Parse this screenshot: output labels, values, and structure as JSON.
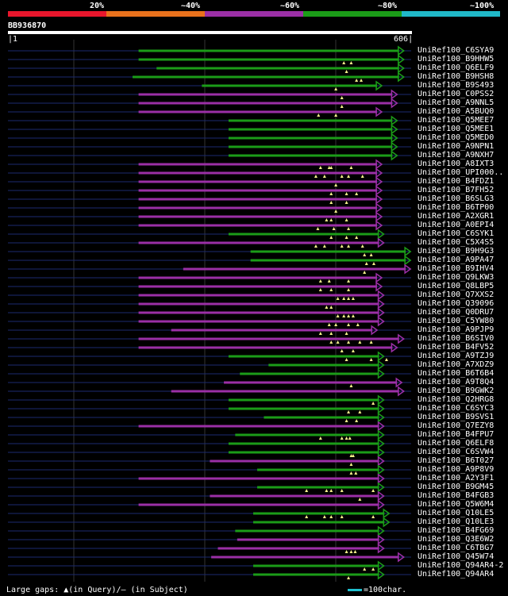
{
  "legend": {
    "labels": [
      "20%",
      "~40%",
      "~60%",
      "~80%",
      "~100%"
    ],
    "colors": [
      "#e8162c",
      "#e9711c",
      "#9b2fa6",
      "#1b9c18",
      "#20b8c8"
    ]
  },
  "query": {
    "id": "BB936870",
    "start": "1",
    "end": "606"
  },
  "footer": {
    "gaps_text": "Large gaps: ▲(in Query)/– (in Subject)",
    "scale_text": "=100char."
  },
  "hits": [
    {
      "label": "UniRef100_C6SYA9",
      "color": "green",
      "start": 197,
      "end": 595,
      "ticks": []
    },
    {
      "label": "UniRef100_B9HHW5",
      "color": "green",
      "start": 197,
      "end": 595,
      "ticks": [
        505,
        516
      ]
    },
    {
      "label": "UniRef100_Q6ELF9",
      "color": "green",
      "start": 224,
      "end": 595,
      "ticks": [
        509
      ]
    },
    {
      "label": "UniRef100_B9HSH8",
      "color": "green",
      "start": 188,
      "end": 595,
      "ticks": [
        524,
        531
      ]
    },
    {
      "label": "UniRef100_B9S493",
      "color": "green",
      "start": 292,
      "end": 562,
      "ticks": [
        493
      ]
    },
    {
      "label": "UniRef100_C0PSS2",
      "color": "purple",
      "start": 197,
      "end": 585,
      "ticks": [
        502
      ]
    },
    {
      "label": "UniRef100_A9NNL5",
      "color": "purple",
      "start": 197,
      "end": 585,
      "ticks": [
        502
      ]
    },
    {
      "label": "UniRef100_A5BUQ0",
      "color": "purple",
      "start": 197,
      "end": 562,
      "ticks": [
        467,
        493
      ]
    },
    {
      "label": "UniRef100_Q5MEE7",
      "color": "green",
      "start": 332,
      "end": 585,
      "ticks": []
    },
    {
      "label": "UniRef100_Q5MEE1",
      "color": "green",
      "start": 332,
      "end": 585,
      "ticks": []
    },
    {
      "label": "UniRef100_Q5MED0",
      "color": "green",
      "start": 332,
      "end": 585,
      "ticks": []
    },
    {
      "label": "UniRef100_A9NPN1",
      "color": "green",
      "start": 332,
      "end": 585,
      "ticks": []
    },
    {
      "label": "UniRef100_A9NXH7",
      "color": "green",
      "start": 332,
      "end": 585,
      "ticks": []
    },
    {
      "label": "UniRef100_A8IXT3",
      "color": "purple",
      "start": 197,
      "end": 562,
      "ticks": [
        470,
        483,
        486,
        516
      ]
    },
    {
      "label": "UniRef100_UPI000..",
      "color": "purple",
      "start": 197,
      "end": 562,
      "ticks": [
        463,
        476,
        502,
        512,
        533
      ]
    },
    {
      "label": "UniRef100_B4FDZ1",
      "color": "purple",
      "start": 197,
      "end": 562,
      "ticks": [
        493
      ]
    },
    {
      "label": "UniRef100_B7FH52",
      "color": "purple",
      "start": 197,
      "end": 562,
      "ticks": [
        486,
        509,
        524
      ]
    },
    {
      "label": "UniRef100_B6SLG3",
      "color": "purple",
      "start": 197,
      "end": 562,
      "ticks": [
        486,
        509
      ]
    },
    {
      "label": "UniRef100_B6TP00",
      "color": "purple",
      "start": 197,
      "end": 562,
      "ticks": [
        493
      ]
    },
    {
      "label": "UniRef100_A2XGR1",
      "color": "purple",
      "start": 197,
      "end": 562,
      "ticks": [
        479,
        486,
        509
      ]
    },
    {
      "label": "UniRef100_A0EPI4",
      "color": "purple",
      "start": 197,
      "end": 562,
      "ticks": [
        466,
        490,
        512
      ]
    },
    {
      "label": "UniRef100_C6SYK1",
      "color": "green",
      "start": 332,
      "end": 565,
      "ticks": [
        486,
        509,
        524
      ]
    },
    {
      "label": "UniRef100_C5X4S5",
      "color": "purple",
      "start": 197,
      "end": 565,
      "ticks": [
        463,
        476,
        502,
        512,
        533
      ]
    },
    {
      "label": "UniRef100_B9H9G3",
      "color": "green",
      "start": 365,
      "end": 605,
      "ticks": [
        536,
        546
      ]
    },
    {
      "label": "UniRef100_A9PA47",
      "color": "green",
      "start": 365,
      "end": 605,
      "ticks": [
        539,
        550
      ]
    },
    {
      "label": "UniRef100_B9IHV4",
      "color": "purple",
      "start": 264,
      "end": 605,
      "ticks": [
        536
      ]
    },
    {
      "label": "UniRef100_Q9LKW3",
      "color": "purple",
      "start": 197,
      "end": 562,
      "ticks": [
        470,
        483,
        512
      ]
    },
    {
      "label": "UniRef100_Q8LBP5",
      "color": "purple",
      "start": 197,
      "end": 562,
      "ticks": [
        470,
        486,
        512
      ]
    },
    {
      "label": "UniRef100_Q7XXS2",
      "color": "purple",
      "start": 197,
      "end": 565,
      "ticks": [
        496,
        505,
        512,
        519
      ]
    },
    {
      "label": "UniRef100_Q39096",
      "color": "purple",
      "start": 197,
      "end": 565,
      "ticks": [
        479,
        486
      ]
    },
    {
      "label": "UniRef100_Q0DRU7",
      "color": "purple",
      "start": 197,
      "end": 565,
      "ticks": [
        496,
        505,
        512,
        519
      ]
    },
    {
      "label": "UniRef100_C5YW80",
      "color": "purple",
      "start": 197,
      "end": 565,
      "ticks": [
        483,
        493,
        512,
        526
      ]
    },
    {
      "label": "UniRef100_A9PJP9",
      "color": "purple",
      "start": 246,
      "end": 555,
      "ticks": [
        470,
        486,
        509
      ]
    },
    {
      "label": "UniRef100_B6SIV0",
      "color": "purple",
      "start": 197,
      "end": 595,
      "ticks": [
        486,
        496,
        512,
        529,
        546
      ]
    },
    {
      "label": "UniRef100_B4FV52",
      "color": "purple",
      "start": 197,
      "end": 585,
      "ticks": [
        502,
        519
      ]
    },
    {
      "label": "UniRef100_A9TZJ9",
      "color": "green",
      "start": 332,
      "end": 565,
      "ticks": [
        509,
        546,
        569
      ]
    },
    {
      "label": "UniRef100_A7XDZ9",
      "color": "green",
      "start": 392,
      "end": 565,
      "ticks": []
    },
    {
      "label": "UniRef100_B6T6B4",
      "color": "green",
      "start": 349,
      "end": 565,
      "ticks": []
    },
    {
      "label": "UniRef100_A9T8Q4",
      "color": "purple",
      "start": 325,
      "end": 592,
      "ticks": [
        516
      ]
    },
    {
      "label": "UniRef100_B9GWK2",
      "color": "purple",
      "start": 246,
      "end": 595,
      "ticks": []
    },
    {
      "label": "UniRef100_Q2HRG8",
      "color": "green",
      "start": 332,
      "end": 565,
      "ticks": [
        549
      ]
    },
    {
      "label": "UniRef100_C6SYC3",
      "color": "green",
      "start": 332,
      "end": 565,
      "ticks": [
        512,
        529
      ]
    },
    {
      "label": "UniRef100_B9SVS1",
      "color": "green",
      "start": 385,
      "end": 565,
      "ticks": [
        509,
        524
      ]
    },
    {
      "label": "UniRef100_Q7EZY8",
      "color": "purple",
      "start": 197,
      "end": 565,
      "ticks": []
    },
    {
      "label": "UniRef100_B4FPU7",
      "color": "green",
      "start": 342,
      "end": 565,
      "ticks": [
        470,
        502,
        509,
        514
      ]
    },
    {
      "label": "UniRef100_Q6ELF8",
      "color": "green",
      "start": 332,
      "end": 565,
      "ticks": []
    },
    {
      "label": "UniRef100_C6SVW4",
      "color": "green",
      "start": 332,
      "end": 565,
      "ticks": [
        516,
        519
      ]
    },
    {
      "label": "UniRef100_B6T027",
      "color": "purple",
      "start": 304,
      "end": 565,
      "ticks": [
        516
      ]
    },
    {
      "label": "UniRef100_A9P8V9",
      "color": "green",
      "start": 375,
      "end": 565,
      "ticks": [
        516,
        523
      ]
    },
    {
      "label": "UniRef100_A2Y3F1",
      "color": "purple",
      "start": 197,
      "end": 565,
      "ticks": []
    },
    {
      "label": "UniRef100_B9GM45",
      "color": "green",
      "start": 375,
      "end": 565,
      "ticks": [
        449,
        479,
        486,
        502,
        549
      ]
    },
    {
      "label": "UniRef100_B4FGB3",
      "color": "purple",
      "start": 304,
      "end": 565,
      "ticks": [
        529
      ]
    },
    {
      "label": "UniRef100_Q5W6M4",
      "color": "purple",
      "start": 197,
      "end": 565,
      "ticks": []
    },
    {
      "label": "UniRef100_Q10LE5",
      "color": "green",
      "start": 369,
      "end": 573,
      "ticks": [
        449,
        476,
        486,
        502,
        549
      ]
    },
    {
      "label": "UniRef100_Q10LE3",
      "color": "green",
      "start": 369,
      "end": 573,
      "ticks": []
    },
    {
      "label": "UniRef100_B4FG69",
      "color": "green",
      "start": 342,
      "end": 565,
      "ticks": []
    },
    {
      "label": "UniRef100_Q3E6W2",
      "color": "purple",
      "start": 345,
      "end": 565,
      "ticks": []
    },
    {
      "label": "UniRef100_C6TBG7",
      "color": "purple",
      "start": 316,
      "end": 565,
      "ticks": [
        509,
        516,
        522
      ]
    },
    {
      "label": "UniRef100_Q45W74",
      "color": "purple",
      "start": 306,
      "end": 595,
      "ticks": []
    },
    {
      "label": "UniRef100_Q94AR4-2",
      "color": "green",
      "start": 369,
      "end": 565,
      "ticks": [
        536,
        549
      ]
    },
    {
      "label": "UniRef100_Q94AR4",
      "color": "green",
      "start": 369,
      "end": 565,
      "ticks": [
        512
      ]
    }
  ]
}
